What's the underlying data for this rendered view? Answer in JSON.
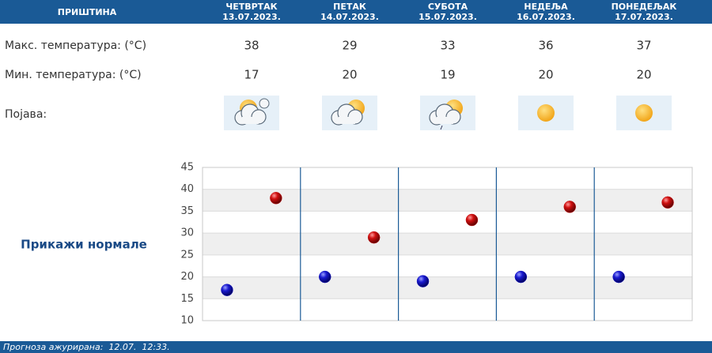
{
  "city": "ПРИШТИНА",
  "row_labels": {
    "max": "Макс. температура: (°C)",
    "min": "Мин. температура: (°C)",
    "phenomenon": "Појава:"
  },
  "days": [
    {
      "name": "ЧЕТВРТАК",
      "date": "13.07.2023."
    },
    {
      "name": "ПЕТАК",
      "date": "14.07.2023."
    },
    {
      "name": "СУБОТА",
      "date": "15.07.2023."
    },
    {
      "name": "НЕДЕЉА",
      "date": "16.07.2023."
    },
    {
      "name": "ПОНЕДЕЉАК",
      "date": "17.07.2023."
    }
  ],
  "normals_link": "Прикажи нормале",
  "footer": "Прогноза ажурирана:  12.07.  12:33.",
  "chart_data": {
    "type": "scatter",
    "series": [
      {
        "color": "#1414c8",
        "values": [
          17,
          20,
          19,
          20,
          20
        ]
      },
      {
        "color": "#c81414",
        "values": [
          38,
          29,
          33,
          36,
          37
        ]
      }
    ],
    "ylim": [
      10,
      45
    ],
    "yticks": [
      10,
      15,
      20,
      25,
      30,
      35,
      40,
      45
    ]
  }
}
